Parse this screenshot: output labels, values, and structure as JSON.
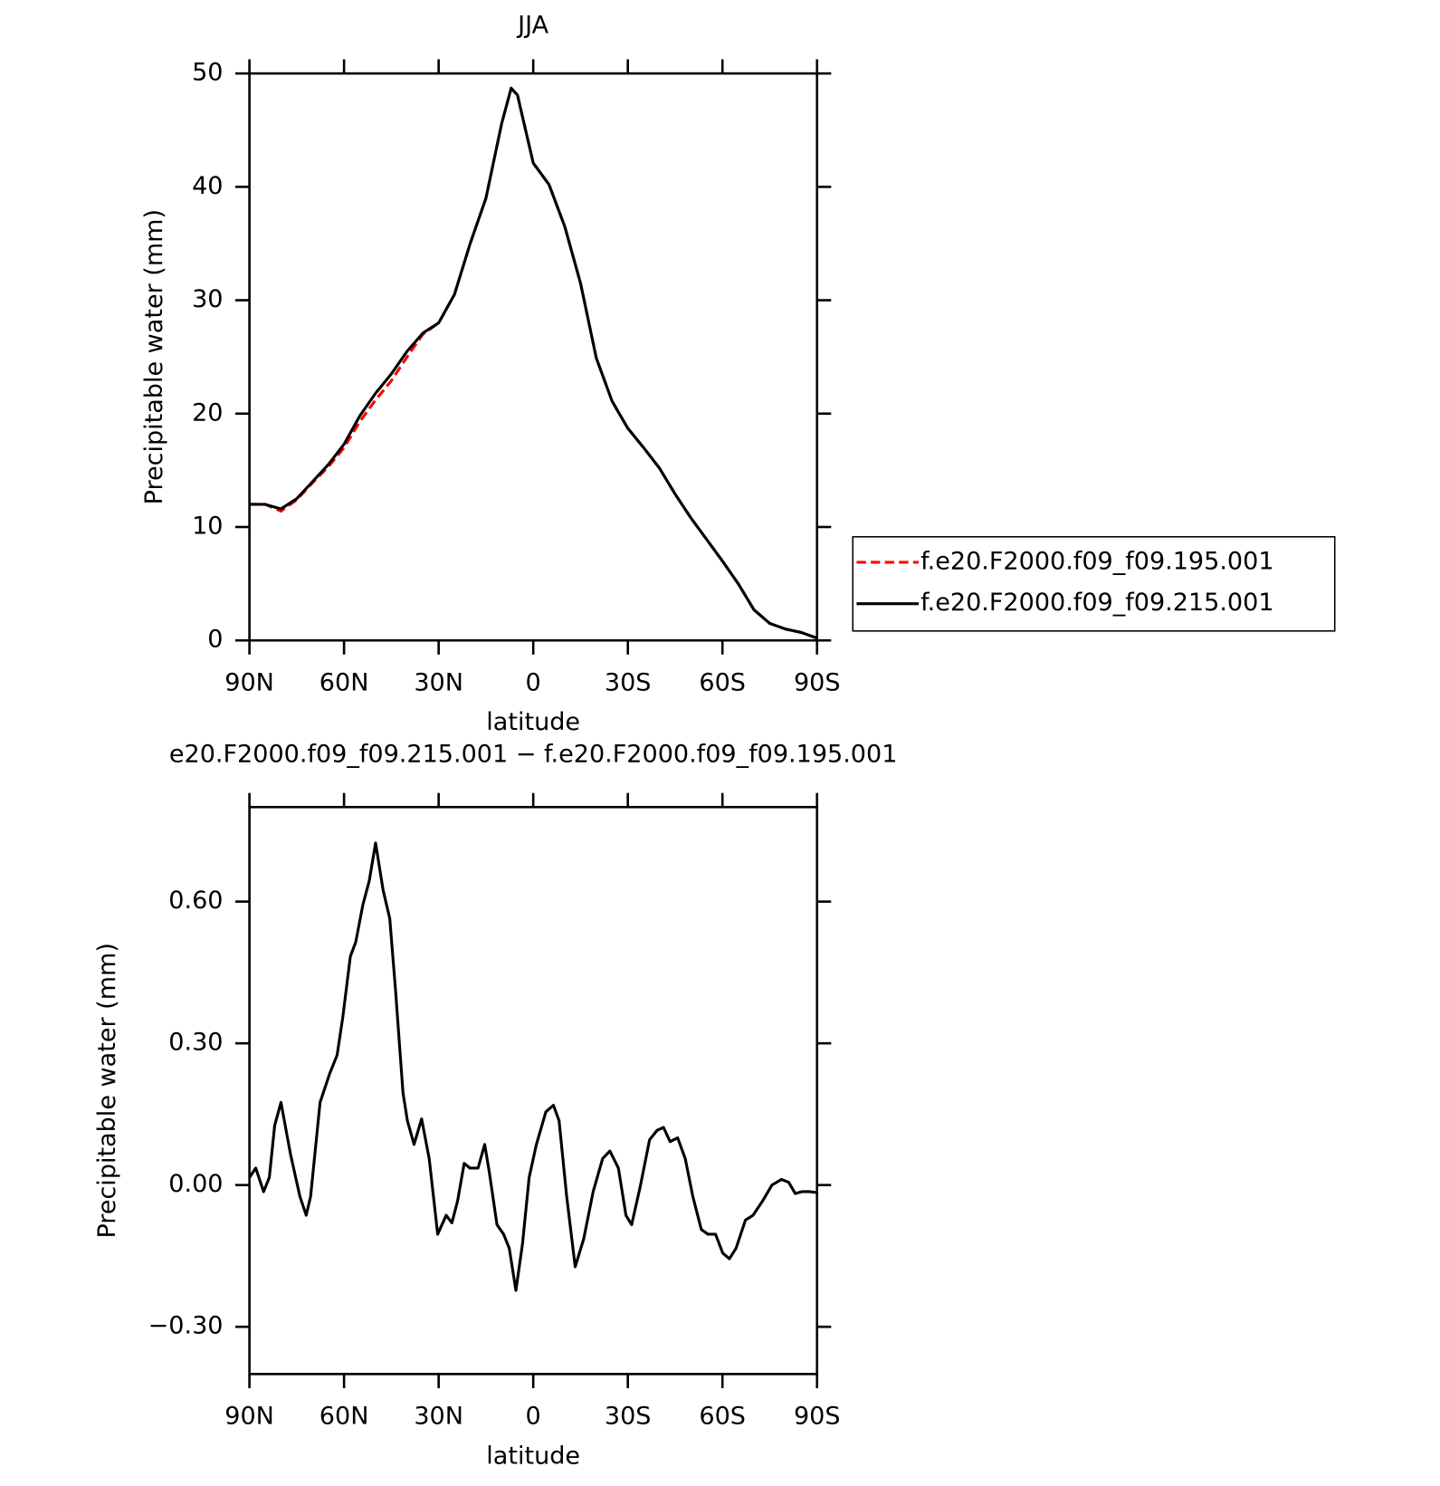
{
  "chart_data": [
    {
      "type": "line",
      "title": "JJA",
      "x_label": "latitude",
      "y_label": "Precipitable water (mm)",
      "x": [
        90,
        85,
        80,
        75,
        70,
        65,
        60,
        55,
        50,
        45,
        40,
        35,
        30,
        25,
        20,
        15,
        10,
        7,
        5,
        0,
        -5,
        -10,
        -15,
        -20,
        -25,
        -30,
        -35,
        -40,
        -45,
        -50,
        -55,
        -60,
        -65,
        -70,
        -75,
        -80,
        -85,
        -90
      ],
      "xlim": [
        90,
        -90
      ],
      "xticks": [
        {
          "value": 90,
          "label": "90N"
        },
        {
          "value": 60,
          "label": "60N"
        },
        {
          "value": 30,
          "label": "30N"
        },
        0,
        {
          "value": -30,
          "label": "30S"
        },
        {
          "value": -60,
          "label": "60S"
        },
        {
          "value": -90,
          "label": "90S"
        }
      ],
      "ylim": [
        0,
        50
      ],
      "yticks": [
        0,
        10,
        20,
        30,
        40,
        50
      ],
      "legend": "right",
      "series": [
        {
          "name": "f.e20.F2000.f09_f09.195.001",
          "color": "#ff0000",
          "dash": true,
          "values": [
            12.0,
            12.0,
            11.4,
            12.4,
            13.9,
            15.3,
            17.0,
            19.3,
            21.2,
            22.9,
            25.0,
            27.0,
            28.0,
            30.5,
            35.0,
            39.0,
            45.6,
            48.7,
            48.1,
            42.1,
            40.2,
            36.5,
            31.5,
            24.9,
            21.1,
            18.7,
            17.0,
            15.2,
            12.9,
            10.8,
            8.9,
            7.0,
            5.0,
            2.7,
            1.5,
            1.0,
            0.7,
            0.2
          ]
        },
        {
          "name": "f.e20.F2000.f09_f09.215.001",
          "color": "#000000",
          "dash": false,
          "values": [
            12.0,
            12.0,
            11.6,
            12.5,
            14.0,
            15.5,
            17.3,
            19.8,
            21.8,
            23.5,
            25.5,
            27.1,
            28.0,
            30.5,
            35.0,
            39.0,
            45.6,
            48.7,
            48.1,
            42.1,
            40.2,
            36.5,
            31.5,
            24.9,
            21.1,
            18.7,
            17.0,
            15.2,
            12.9,
            10.8,
            8.9,
            7.0,
            5.0,
            2.7,
            1.5,
            1.0,
            0.7,
            0.2
          ]
        }
      ]
    },
    {
      "type": "line",
      "title": "e20.F2000.f09_f09.215.001 − f.e20.F2000.f09_f09.195.001",
      "x_label": "latitude",
      "y_label": "Precipitable water (mm)",
      "x": [
        90,
        88,
        85.5,
        83.7,
        82,
        80,
        77,
        74,
        72,
        70.6,
        67.6,
        64.6,
        62.2,
        60.4,
        58,
        56.3,
        54,
        52,
        50,
        47.6,
        45.5,
        43.7,
        41.3,
        39.9,
        37.8,
        35.4,
        33,
        30.3,
        27.6,
        25.8,
        24,
        21.9,
        20.1,
        17.5,
        15.4,
        13.9,
        11.5,
        9.4,
        7.6,
        5.5,
        3.4,
        1.3,
        -1.0,
        -4.0,
        -6.4,
        -8.2,
        -10.6,
        -13.3,
        -16,
        -19,
        -22,
        -24.3,
        -27,
        -29.4,
        -31.2,
        -33.9,
        -36.9,
        -39.3,
        -41.3,
        -43.4,
        -45.8,
        -48.2,
        -50.6,
        -53.3,
        -55.4,
        -57.8,
        -60.1,
        -62.2,
        -64.3,
        -67.3,
        -69.7,
        -72.7,
        -75.7,
        -78.7,
        -81,
        -83.1,
        -85.2,
        -87.6,
        -90
      ],
      "values": [
        0.016,
        0.036,
        -0.014,
        0.016,
        0.126,
        0.175,
        0.066,
        -0.024,
        -0.064,
        -0.024,
        0.175,
        0.235,
        0.275,
        0.355,
        0.484,
        0.514,
        0.594,
        0.644,
        0.724,
        0.624,
        0.564,
        0.415,
        0.195,
        0.136,
        0.086,
        0.14,
        0.056,
        -0.104,
        -0.064,
        -0.08,
        -0.034,
        0.046,
        0.036,
        0.036,
        0.086,
        0.026,
        -0.084,
        -0.104,
        -0.134,
        -0.223,
        -0.124,
        0.016,
        0.086,
        0.155,
        0.169,
        0.136,
        -0.024,
        -0.173,
        -0.114,
        -0.014,
        0.056,
        0.072,
        0.036,
        -0.064,
        -0.084,
        -0.004,
        0.096,
        0.116,
        0.122,
        0.092,
        0.1,
        0.056,
        -0.024,
        -0.094,
        -0.104,
        -0.104,
        -0.144,
        -0.156,
        -0.134,
        -0.074,
        -0.064,
        -0.034,
        0.0,
        0.012,
        0.006,
        -0.018,
        -0.014,
        -0.014,
        -0.016
      ],
      "color": "#000000",
      "xlim": [
        90,
        -90
      ],
      "xticks": [
        {
          "value": 90,
          "label": "90N"
        },
        {
          "value": 60,
          "label": "60N"
        },
        {
          "value": 30,
          "label": "30N"
        },
        0,
        {
          "value": -30,
          "label": "30S"
        },
        {
          "value": -60,
          "label": "60S"
        },
        {
          "value": -90,
          "label": "90S"
        }
      ],
      "ylim": [
        -0.4,
        0.8
      ],
      "yticks": [
        {
          "value": -0.3,
          "label": "−0.30"
        },
        {
          "value": 0,
          "label": "0.00"
        },
        {
          "value": 0.3,
          "label": "0.30"
        },
        {
          "value": 0.6,
          "label": "0.60"
        }
      ]
    }
  ]
}
